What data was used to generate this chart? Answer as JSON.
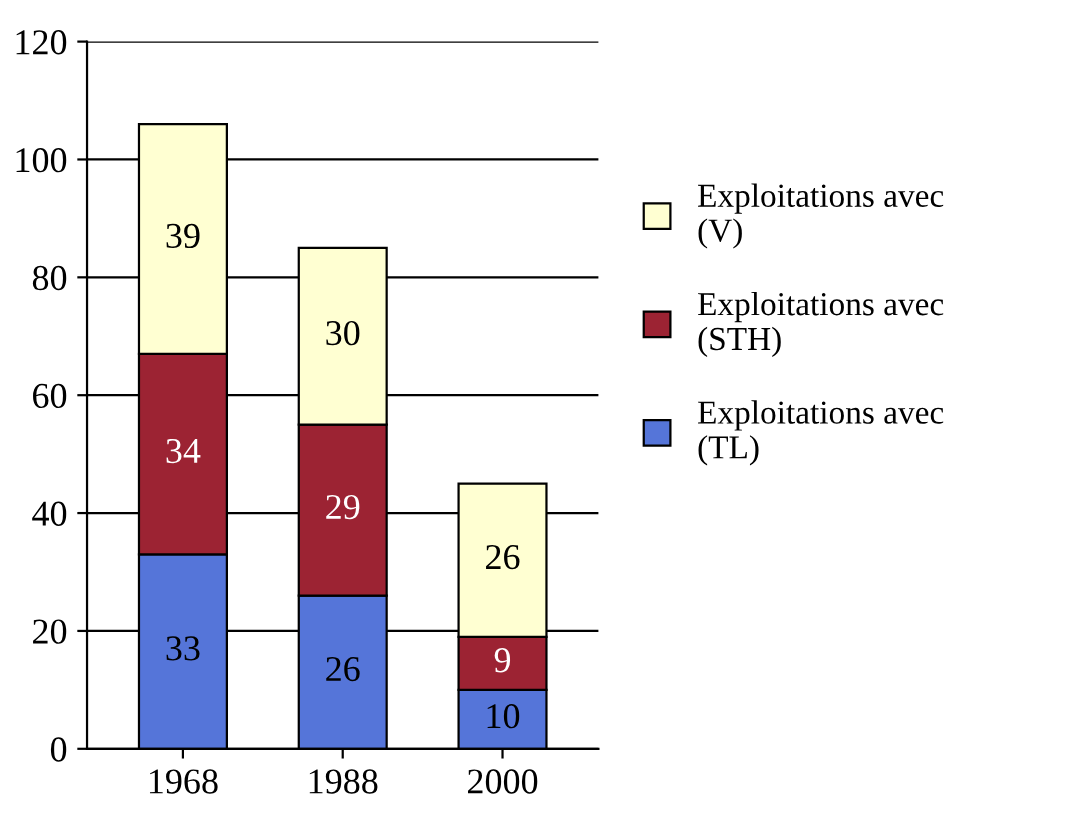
{
  "chart_data": {
    "type": "bar",
    "stacked": true,
    "categories": [
      "1968",
      "1988",
      "2000"
    ],
    "series": [
      {
        "name": "Exploitations avec (TL)",
        "color": "#5575d9",
        "values": [
          33,
          26,
          10
        ]
      },
      {
        "name": "Exploitations avec (STH)",
        "color": "#9c2333",
        "values": [
          34,
          29,
          9
        ]
      },
      {
        "name": "Exploitations avec (V)",
        "color": "#ffffd2",
        "values": [
          39,
          30,
          26
        ]
      }
    ],
    "ylim": [
      0,
      120
    ],
    "yticks": [
      0,
      20,
      40,
      60,
      80,
      100,
      120
    ],
    "grid": "y",
    "legend": "right",
    "data_labels": true
  }
}
